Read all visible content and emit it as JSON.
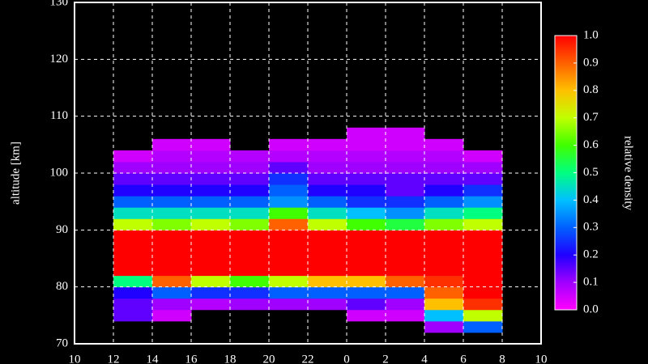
{
  "chart_data": {
    "type": "heatmap",
    "xlabel": null,
    "ylabel": "altitude [km]",
    "colorbar_label": "relative density",
    "xlim": [
      10,
      34
    ],
    "xticks": [
      10,
      12,
      14,
      16,
      18,
      20,
      22,
      {
        "value": 24,
        "label": "0"
      },
      {
        "value": 26,
        "label": "2"
      },
      {
        "value": 28,
        "label": "4"
      },
      {
        "value": 30,
        "label": "6"
      },
      {
        "value": 32,
        "label": "8"
      },
      {
        "value": 34,
        "label": "10"
      }
    ],
    "ylim": [
      70,
      130
    ],
    "yticks": [
      70,
      80,
      90,
      100,
      110,
      120,
      130
    ],
    "grid": true,
    "x_bins": [
      12,
      14,
      16,
      18,
      20,
      22,
      24,
      26,
      28,
      30,
      32
    ],
    "y_bins": [
      72,
      74,
      76,
      78,
      80,
      82,
      84,
      86,
      88,
      90,
      92,
      94,
      96,
      98,
      100,
      102,
      104,
      106,
      108
    ],
    "z": [
      [
        null,
        null,
        null,
        null,
        null,
        null,
        null,
        null,
        0.1,
        0.3
      ],
      [
        0.15,
        0.05,
        null,
        null,
        null,
        null,
        0.05,
        0.05,
        0.4,
        0.7
      ],
      [
        0.15,
        0.1,
        0.08,
        0.1,
        0.1,
        0.1,
        0.15,
        0.1,
        0.8,
        0.95
      ],
      [
        0.2,
        0.3,
        0.25,
        0.25,
        0.3,
        0.3,
        0.3,
        0.3,
        0.9,
        1
      ],
      [
        0.5,
        0.9,
        0.7,
        0.6,
        0.7,
        0.8,
        0.8,
        0.9,
        0.95,
        1
      ],
      [
        1,
        1,
        1,
        1,
        1,
        1,
        1,
        1,
        1,
        1
      ],
      [
        1,
        1,
        1,
        1,
        1,
        1,
        1,
        1,
        1,
        1
      ],
      [
        1,
        1,
        1,
        1,
        1,
        1,
        1,
        1,
        1,
        1
      ],
      [
        1,
        1,
        1,
        1,
        1,
        1,
        1,
        1,
        1,
        1
      ],
      [
        0.7,
        0.65,
        0.7,
        0.65,
        0.9,
        0.7,
        0.6,
        0.55,
        0.65,
        0.7
      ],
      [
        0.45,
        0.45,
        0.45,
        0.45,
        0.6,
        0.45,
        0.4,
        0.35,
        0.45,
        0.5
      ],
      [
        0.3,
        0.3,
        0.3,
        0.3,
        0.35,
        0.3,
        0.25,
        0.25,
        0.3,
        0.35
      ],
      [
        0.2,
        0.2,
        0.2,
        0.2,
        0.3,
        0.2,
        0.2,
        0.15,
        0.2,
        0.25
      ],
      [
        0.15,
        0.15,
        0.15,
        0.15,
        0.25,
        0.15,
        0.15,
        0.15,
        0.15,
        0.15
      ],
      [
        0.1,
        0.1,
        0.1,
        0.1,
        0.15,
        0.1,
        0.1,
        0.1,
        0.1,
        0.1
      ],
      [
        0.05,
        0.08,
        0.08,
        0.08,
        0.08,
        0.08,
        0.08,
        0.08,
        0.08,
        0.05
      ],
      [
        null,
        0.05,
        0.05,
        null,
        0.05,
        0.05,
        0.05,
        0.05,
        0.05,
        null
      ],
      [
        null,
        null,
        null,
        null,
        null,
        null,
        0.05,
        0.05,
        null,
        null
      ]
    ],
    "colorbar_lim": [
      0,
      1
    ],
    "colorbar_ticks": [
      {
        "value": 0,
        "label": "0.0"
      },
      0.1,
      0.2,
      0.3,
      0.4,
      0.5,
      0.6,
      0.7,
      0.8,
      0.9,
      {
        "value": 1,
        "label": "1.0"
      }
    ],
    "colors": [
      "#ff00ff",
      "#a000ff",
      "#2000ff",
      "#0060ff",
      "#00c0ff",
      "#00ff80",
      "#40ff00",
      "#c0ff00",
      "#ffc000",
      "#ff6000",
      "#ff0000"
    ]
  }
}
